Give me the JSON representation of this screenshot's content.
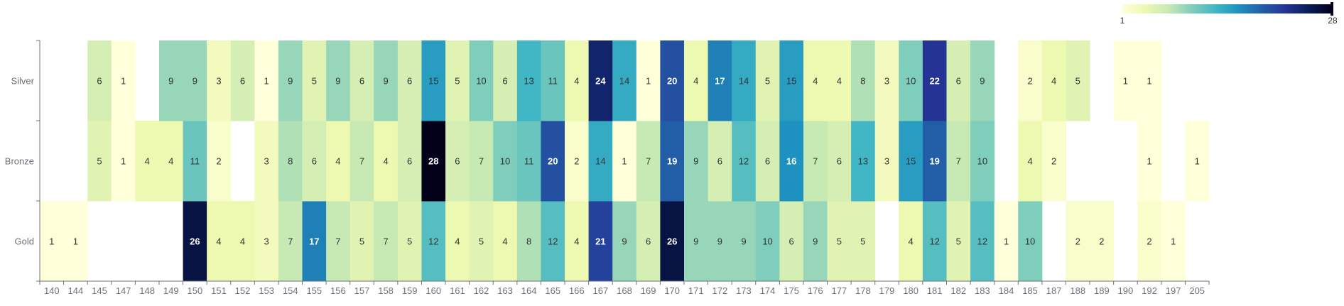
{
  "chart_data": {
    "type": "heatmap",
    "title": "",
    "xlabel": "",
    "ylabel": "",
    "x_categories": [
      "140",
      "144",
      "145",
      "147",
      "148",
      "149",
      "150",
      "151",
      "152",
      "153",
      "154",
      "155",
      "156",
      "157",
      "158",
      "159",
      "160",
      "161",
      "162",
      "163",
      "164",
      "165",
      "166",
      "167",
      "168",
      "169",
      "170",
      "171",
      "172",
      "173",
      "174",
      "175",
      "176",
      "177",
      "178",
      "179",
      "180",
      "181",
      "182",
      "183",
      "184",
      "185",
      "187",
      "188",
      "189",
      "190",
      "192",
      "197",
      "205"
    ],
    "y_categories": [
      "Gold",
      "Bronze",
      "Silver"
    ],
    "rows": {
      "Silver": [
        null,
        null,
        6,
        1,
        null,
        9,
        9,
        3,
        6,
        1,
        9,
        5,
        9,
        6,
        9,
        6,
        15,
        5,
        10,
        6,
        13,
        11,
        4,
        24,
        14,
        1,
        20,
        4,
        17,
        14,
        5,
        15,
        4,
        4,
        8,
        3,
        10,
        22,
        6,
        9,
        null,
        2,
        4,
        5,
        null,
        1,
        1,
        null,
        null
      ],
      "Bronze": [
        null,
        null,
        5,
        1,
        4,
        4,
        11,
        2,
        null,
        3,
        8,
        6,
        4,
        7,
        4,
        6,
        28,
        6,
        7,
        10,
        11,
        20,
        2,
        14,
        1,
        7,
        19,
        9,
        6,
        12,
        6,
        16,
        7,
        6,
        13,
        3,
        15,
        19,
        7,
        10,
        null,
        4,
        2,
        null,
        null,
        null,
        1,
        null,
        1
      ],
      "Gold": [
        1,
        1,
        null,
        null,
        null,
        null,
        26,
        4,
        4,
        3,
        7,
        17,
        7,
        5,
        7,
        5,
        12,
        4,
        5,
        4,
        8,
        12,
        4,
        21,
        9,
        6,
        26,
        9,
        9,
        9,
        10,
        6,
        9,
        5,
        5,
        null,
        4,
        12,
        5,
        12,
        1,
        10,
        null,
        2,
        2,
        null,
        2,
        1,
        null
      ]
    },
    "visual_map": {
      "min": 1,
      "max": 28,
      "min_label": "1",
      "max_label": "28",
      "colors": [
        "#ffffd9",
        "#edf8b1",
        "#c7e9b4",
        "#7fcdbb",
        "#41b6c4",
        "#1d91c0",
        "#225ea8",
        "#253494",
        "#081d58",
        "#03001a"
      ]
    },
    "grid": false,
    "legend": "top-right"
  }
}
